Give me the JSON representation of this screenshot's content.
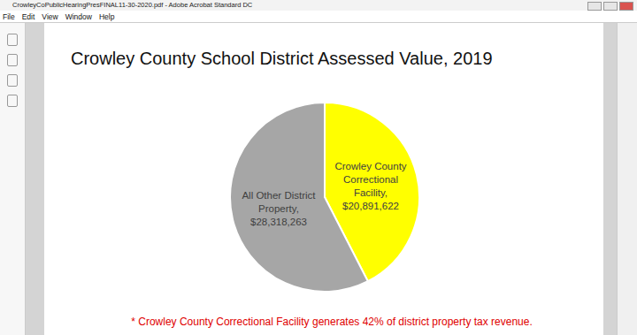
{
  "window": {
    "title": "CrowleyCoPublicHearingPresFINAL11-30-2020.pdf - Adobe Acrobat Standard DC",
    "menu": [
      "File",
      "Edit",
      "View",
      "Window",
      "Help"
    ]
  },
  "chart_data": {
    "type": "pie",
    "title": "Crowley County School District Assessed Value, 2019",
    "categories": [
      "Crowley County Correctional Facility,",
      "All Other District Property,"
    ],
    "values": [
      20891622,
      28318263
    ],
    "value_labels": [
      "$20,891,622",
      "$28,318,263"
    ],
    "colors": [
      "#ffff00",
      "#a6a6a6"
    ],
    "data_labels": true,
    "annotation": "* Crowley County Correctional Facility generates 42% of district property tax revenue."
  }
}
